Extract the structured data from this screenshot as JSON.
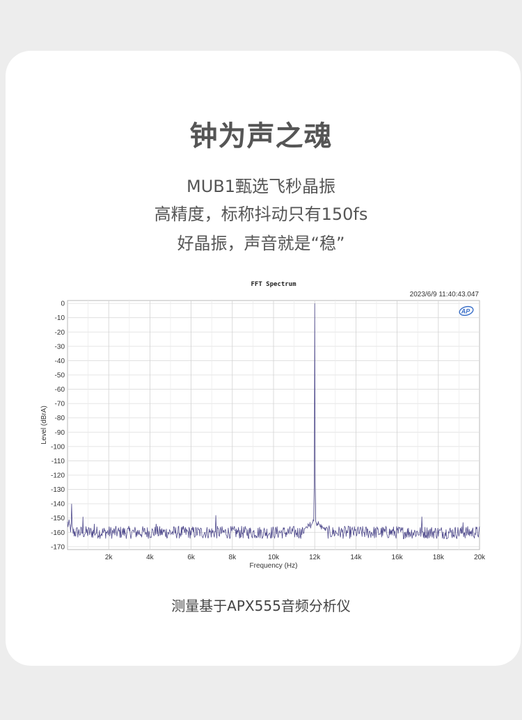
{
  "header": {
    "title": "钟为声之魂",
    "lines": [
      "MUB1甄选飞秒晶振",
      "高精度，标称抖动只有150fs",
      "好晶振，声音就是“稳”"
    ]
  },
  "caption": "测量基于APX555音频分析仪",
  "chart_data": {
    "type": "line",
    "title": "FFT Spectrum",
    "timestamp": "2023/6/9 11:40:43.047",
    "logo": "AP",
    "xlabel": "Frequency (Hz)",
    "ylabel": "Level (dBrA)",
    "xlim": [
      0,
      20000
    ],
    "ylim": [
      -172,
      2
    ],
    "x_ticks": [
      2000,
      4000,
      6000,
      8000,
      10000,
      12000,
      14000,
      16000,
      18000,
      20000
    ],
    "x_tick_labels": [
      "2k",
      "4k",
      "6k",
      "8k",
      "10k",
      "12k",
      "14k",
      "16k",
      "18k",
      "20k"
    ],
    "y_ticks": [
      0,
      -10,
      -20,
      -30,
      -40,
      -50,
      -60,
      -70,
      -80,
      -90,
      -100,
      -110,
      -120,
      -130,
      -140,
      -150,
      -160,
      -170
    ],
    "y_tick_labels": [
      "0",
      "-10",
      "-20",
      "-30",
      "-40",
      "-50",
      "-60",
      "-70",
      "-80",
      "-90",
      "-100",
      "-110",
      "-120",
      "-130",
      "-140",
      "-150",
      "-160",
      "-170"
    ],
    "grid": true,
    "line_color": "#4f4a8c",
    "noise_floor": -160,
    "fundamental": {
      "x": 12000,
      "y": 0
    },
    "spurs": [
      {
        "x": 200,
        "y": -140
      },
      {
        "x": 750,
        "y": -149
      },
      {
        "x": 1300,
        "y": -154
      },
      {
        "x": 4300,
        "y": -154
      },
      {
        "x": 7200,
        "y": -148
      },
      {
        "x": 17200,
        "y": -149
      },
      {
        "x": 19200,
        "y": -153
      }
    ]
  }
}
